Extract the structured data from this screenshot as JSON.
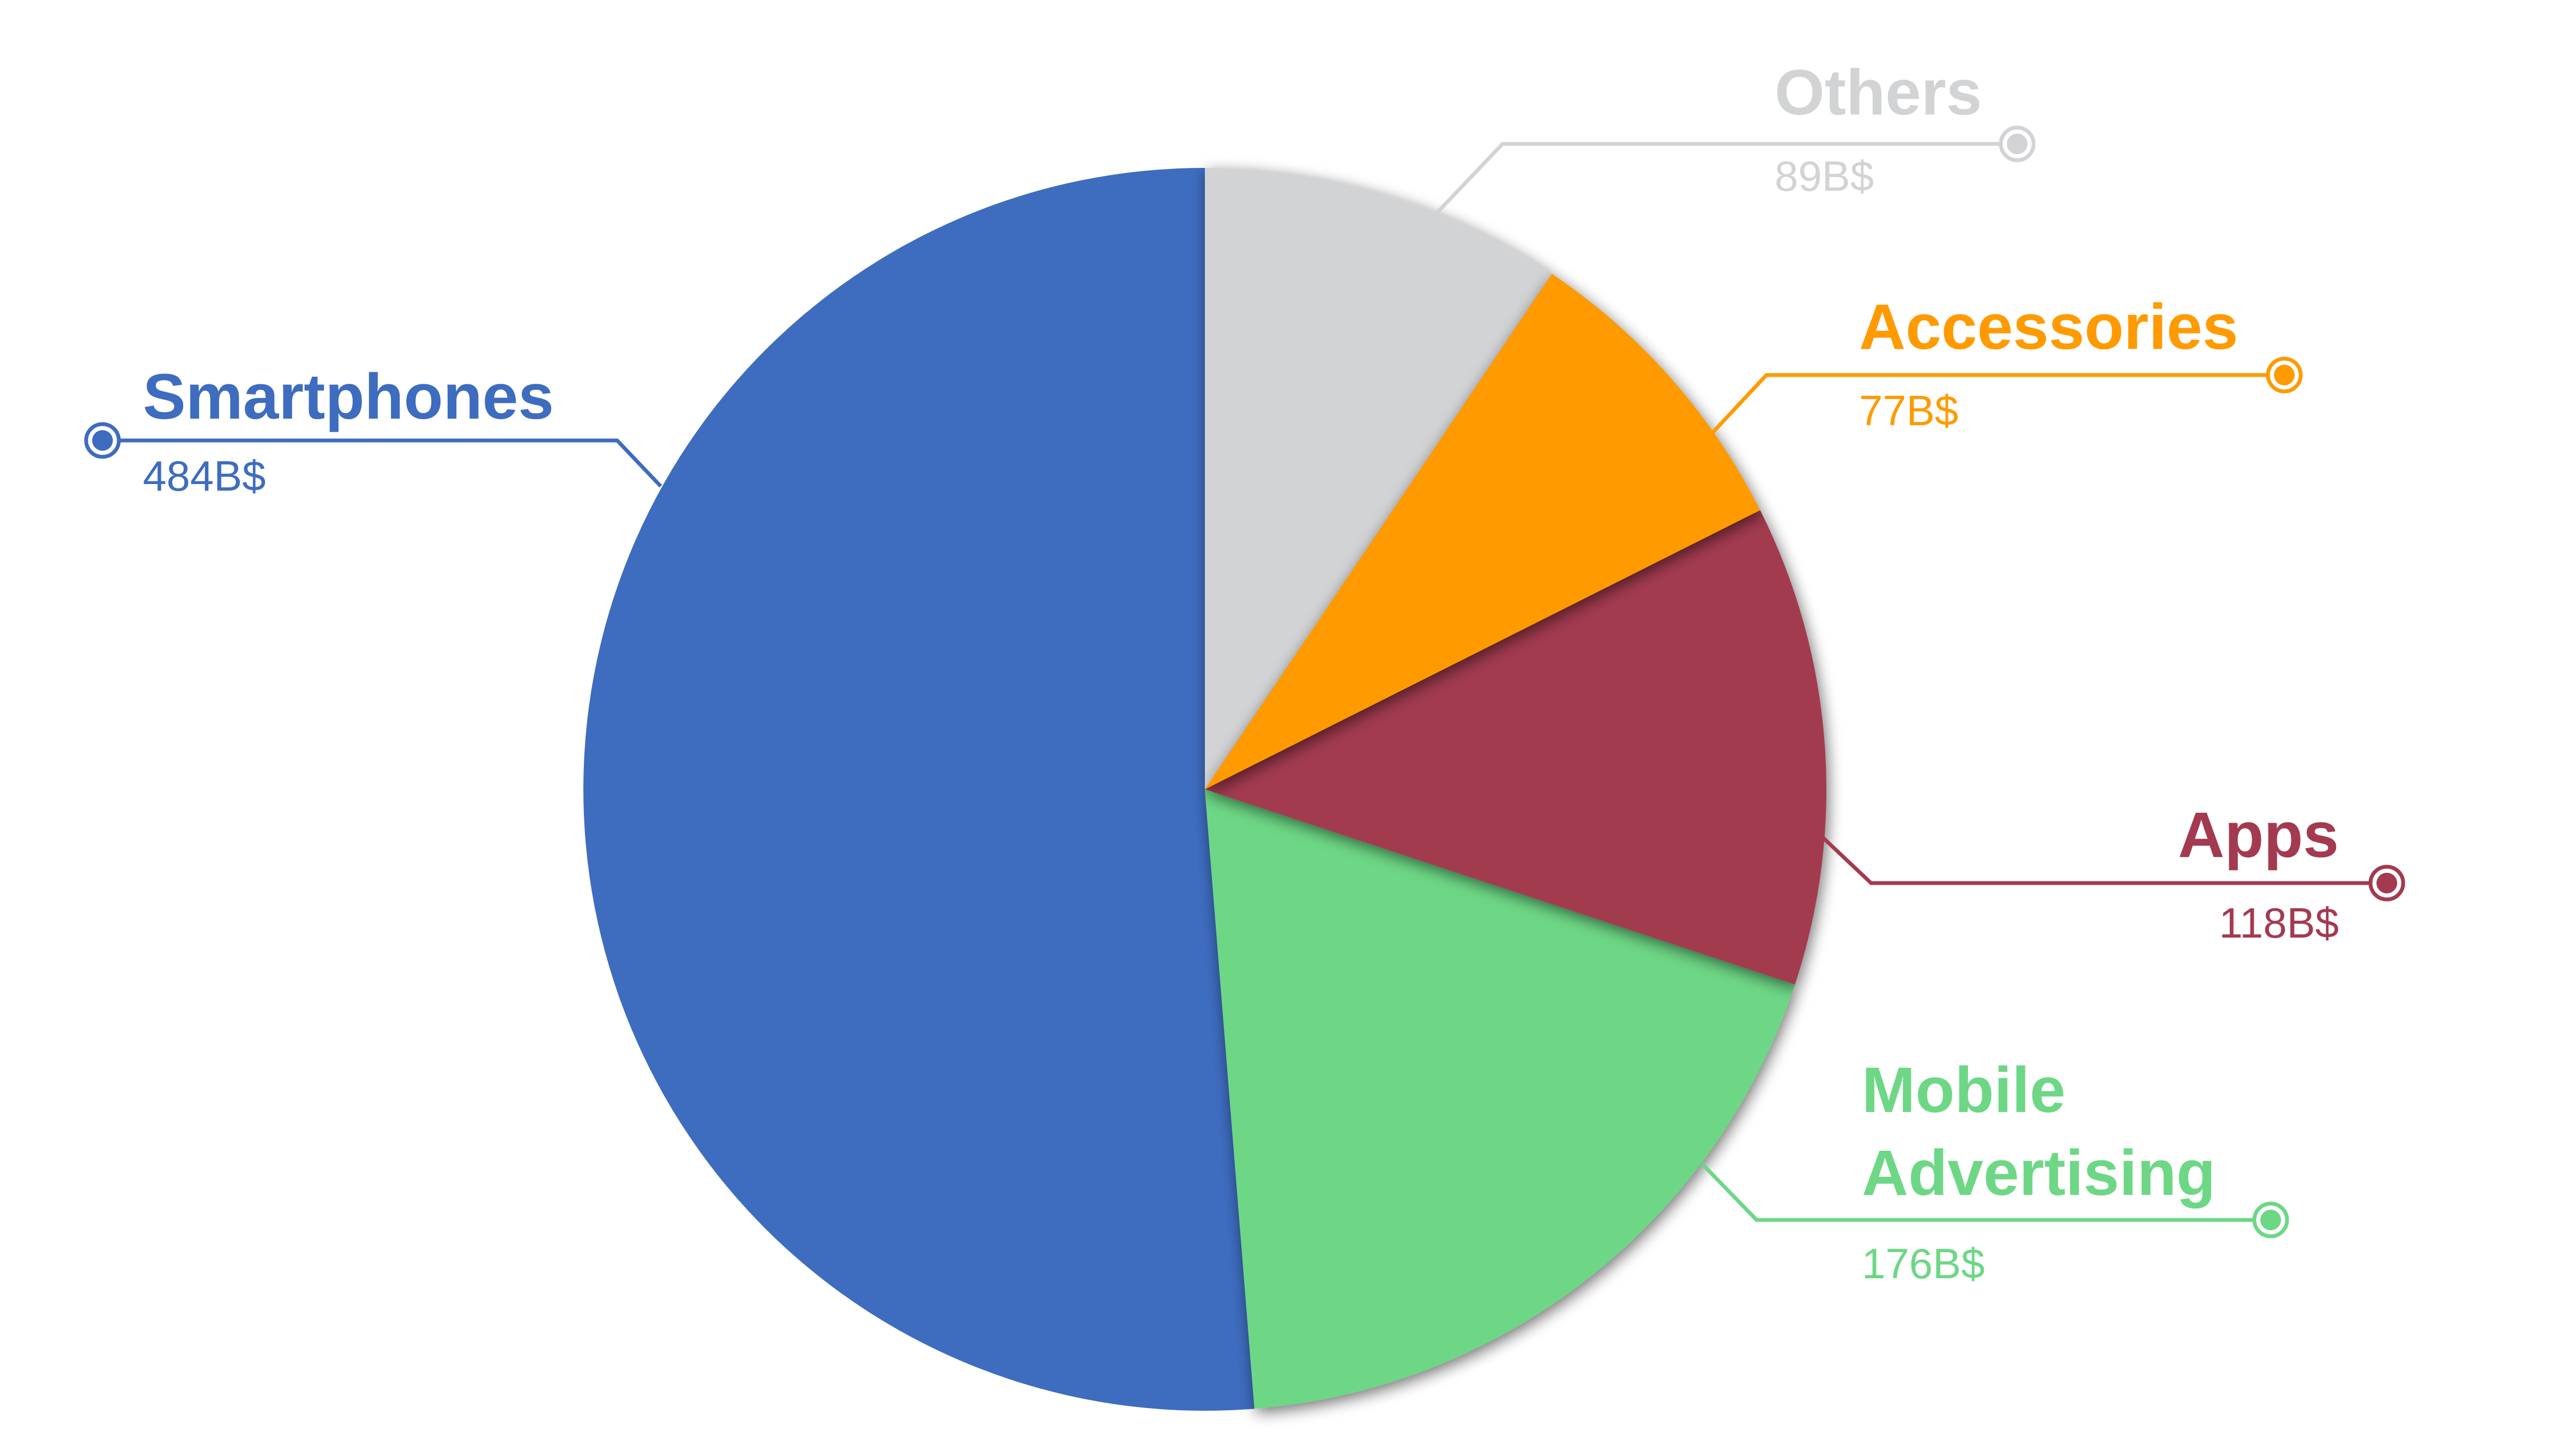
{
  "chart_data": {
    "type": "pie",
    "title": "",
    "start_angle_deg": 0,
    "direction": "clockwise",
    "slices": [
      {
        "label": "Others",
        "value": 89,
        "value_label": "89B$",
        "color": "#D2D3D5"
      },
      {
        "label": "Accessories",
        "value": 77,
        "value_label": "77B$",
        "color": "#FF9A00"
      },
      {
        "label": "Apps",
        "value": 118,
        "value_label": "118B$",
        "color": "#A33A50"
      },
      {
        "label": "Mobile Advertising",
        "value": 176,
        "value_label": "176B$",
        "color": "#6DD785"
      },
      {
        "label": "Smartphones",
        "value": 484,
        "value_label": "484B$",
        "color": "#3E6CBF"
      }
    ],
    "legend": "none"
  }
}
